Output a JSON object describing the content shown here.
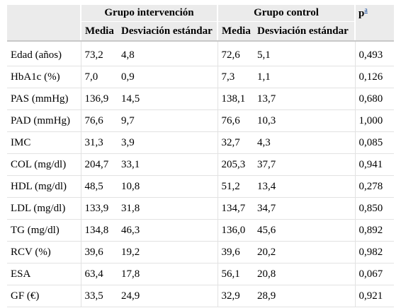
{
  "table": {
    "groups": [
      {
        "label": "Grupo intervención"
      },
      {
        "label": "Grupo control"
      }
    ],
    "p_header": "p",
    "p_footnote": "a",
    "subheaders": [
      "Media",
      "Desviación estándar",
      "Media",
      "Desviación estándar"
    ],
    "rows": [
      {
        "label": "Edad (años)",
        "values": [
          "73,2",
          "4,8",
          "72,6",
          "5,1",
          "0,493"
        ]
      },
      {
        "label": "HbA1c (%)",
        "values": [
          "7,0",
          "0,9",
          "7,3",
          "1,1",
          "0,126"
        ]
      },
      {
        "label": "PAS (mmHg)",
        "values": [
          "136,9",
          "14,5",
          "138,1",
          "13,7",
          "0,680"
        ]
      },
      {
        "label": "PAD (mmHg)",
        "values": [
          "76,6",
          "9,7",
          "76,6",
          "10,3",
          "1,000"
        ]
      },
      {
        "label": "IMC",
        "values": [
          "31,3",
          "3,9",
          "32,7",
          "4,3",
          "0,085"
        ]
      },
      {
        "label": "COL (mg/dl)",
        "values": [
          "204,7",
          "33,1",
          "205,3",
          "37,7",
          "0,941"
        ]
      },
      {
        "label": "HDL (mg/dl)",
        "values": [
          "48,5",
          "10,8",
          "51,2",
          "13,4",
          "0,278"
        ]
      },
      {
        "label": "LDL (mg/dl)",
        "values": [
          "133,9",
          "31,8",
          "134,7",
          "34,7",
          "0,850"
        ]
      },
      {
        "label": "TG (mg/dl)",
        "values": [
          "134,8",
          "46,3",
          "136,0",
          "45,6",
          "0,892"
        ]
      },
      {
        "label": "RCV (%)",
        "values": [
          "39,6",
          "19,2",
          "39,6",
          "20,2",
          "0,982"
        ]
      },
      {
        "label": "ESA",
        "values": [
          "63,4",
          "17,8",
          "56,1",
          "20,8",
          "0,067"
        ]
      },
      {
        "label": "GF (€)",
        "values": [
          "33,5",
          "24,9",
          "32,9",
          "28,9",
          "0,921"
        ]
      }
    ]
  },
  "colors": {
    "header_bg": "#ebebeb",
    "row_border": "#e2e2e2",
    "footnote_link": "#1a4fa0"
  }
}
